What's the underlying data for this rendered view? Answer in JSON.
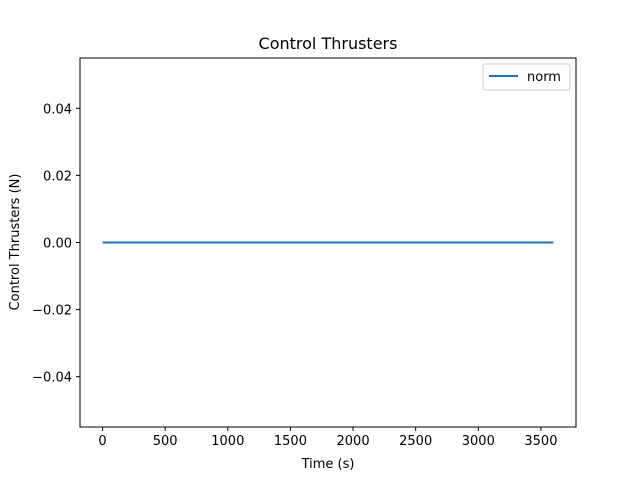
{
  "chart_data": {
    "type": "line",
    "title": "Control Thrusters",
    "xlabel": "Time (s)",
    "ylabel": "Control Thrusters (N)",
    "xlim": [
      -180,
      3780
    ],
    "ylim": [
      -0.055,
      0.055
    ],
    "xticks": [
      0,
      500,
      1000,
      1500,
      2000,
      2500,
      3000,
      3500
    ],
    "xtick_labels": [
      "0",
      "500",
      "1000",
      "1500",
      "2000",
      "2500",
      "3000",
      "3500"
    ],
    "yticks": [
      -0.04,
      -0.02,
      0.0,
      0.02,
      0.04
    ],
    "ytick_labels": [
      "−0.04",
      "−0.02",
      "0.00",
      "0.02",
      "0.04"
    ],
    "grid": false,
    "legend_position": "upper right",
    "series": [
      {
        "name": "norm",
        "color": "#1f77b4",
        "x": [
          0,
          3600
        ],
        "y": [
          0,
          0
        ]
      }
    ]
  }
}
